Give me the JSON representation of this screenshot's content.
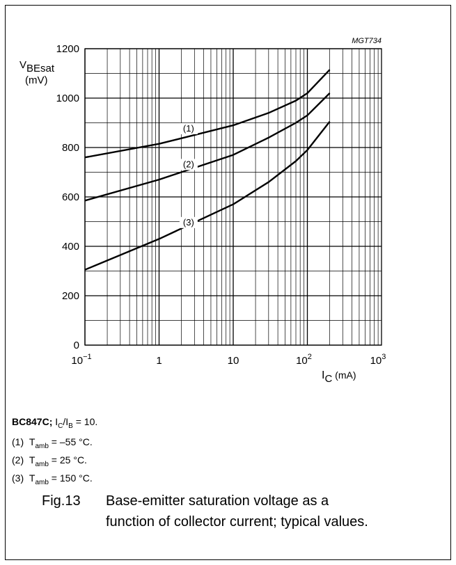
{
  "chart_data": {
    "type": "line",
    "x_scale": "log",
    "xlim": [
      0.1,
      1000
    ],
    "ylim": [
      0,
      1200
    ],
    "y_ticks": [
      0,
      200,
      400,
      600,
      800,
      1000,
      1200
    ],
    "x_tick_labels": [
      {
        "value": 0.1,
        "base": "10",
        "exp": "−1"
      },
      {
        "value": 1,
        "base": "1",
        "exp": ""
      },
      {
        "value": 10,
        "base": "10",
        "exp": ""
      },
      {
        "value": 100,
        "base": "10",
        "exp": "2"
      },
      {
        "value": 1000,
        "base": "10",
        "exp": "3"
      }
    ],
    "ylabel": {
      "main": "V",
      "sub": "BEsat",
      "unit": "(mV)"
    },
    "xlabel": {
      "main": "I",
      "sub": "C",
      "unit": " (mA)"
    },
    "code": "MGT734",
    "grid": true,
    "series": [
      {
        "name": "(1)",
        "x": [
          0.1,
          1,
          10,
          30,
          70,
          100,
          200
        ],
        "y": [
          760,
          815,
          890,
          940,
          990,
          1020,
          1115
        ]
      },
      {
        "name": "(2)",
        "x": [
          0.1,
          1,
          10,
          30,
          70,
          100,
          200
        ],
        "y": [
          585,
          670,
          770,
          840,
          900,
          930,
          1020
        ]
      },
      {
        "name": "(3)",
        "x": [
          0.1,
          1,
          10,
          30,
          70,
          100,
          200
        ],
        "y": [
          305,
          430,
          570,
          660,
          745,
          790,
          905
        ]
      }
    ],
    "series_label_points": [
      {
        "x": 2.5,
        "y": 865
      },
      {
        "x": 2.5,
        "y": 720
      },
      {
        "x": 2.5,
        "y": 485
      }
    ]
  },
  "notes": {
    "device": "BC847C;",
    "ratio": {
      "a": "I",
      "a_sub": "C",
      "b": "/I",
      "b_sub": "B",
      "rest": " = 10."
    },
    "conditions": [
      {
        "num": "(1)",
        "t": "T",
        "t_sub": "amb",
        "val": " = –55 °C."
      },
      {
        "num": "(2)",
        "t": "T",
        "t_sub": "amb",
        "val": " = 25 °C."
      },
      {
        "num": "(3)",
        "t": "T",
        "t_sub": "amb",
        "val": " = 150 °C."
      }
    ]
  },
  "caption": {
    "fig": "Fig.13",
    "line1": "Base-emitter saturation voltage as a",
    "line2": "function of collector current; typical values."
  }
}
